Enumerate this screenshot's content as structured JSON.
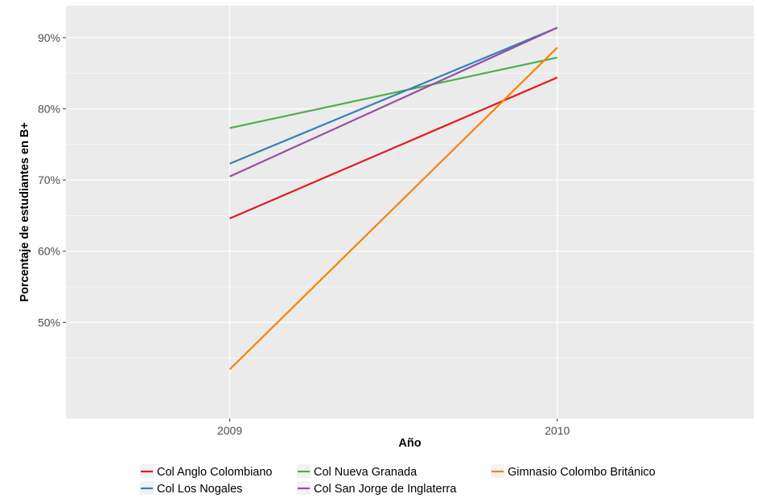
{
  "chart_data": {
    "type": "line",
    "title": "",
    "xlabel": "Año",
    "ylabel": "Porcentaje de estudiantes en B+",
    "x": [
      2009,
      2010
    ],
    "xlim": [
      2008.5,
      2010.6
    ],
    "ylim": [
      36.5,
      94.5
    ],
    "yticks": [
      50,
      60,
      70,
      80,
      90
    ],
    "ytick_labels": [
      "50%",
      "60%",
      "70%",
      "80%",
      "90%"
    ],
    "xticks": [
      2009,
      2010
    ],
    "xtick_labels": [
      "2009",
      "2010"
    ],
    "grid": true,
    "legend_position": "bottom",
    "series": [
      {
        "name": "Col Anglo Colombiano",
        "color": "#e41a1c",
        "values": [
          64.6,
          84.4
        ]
      },
      {
        "name": "Col Nueva Granada",
        "color": "#4daf4a",
        "values": [
          77.3,
          87.2
        ]
      },
      {
        "name": "Gimnasio Colombo Británico",
        "color": "#ff7f00",
        "values": [
          43.4,
          88.6
        ]
      },
      {
        "name": "Col Los Nogales",
        "color": "#377eb8",
        "values": [
          72.3,
          91.4
        ]
      },
      {
        "name": "Col San Jorge de Inglaterra",
        "color": "#984ea3",
        "values": [
          70.5,
          91.4
        ]
      }
    ]
  }
}
